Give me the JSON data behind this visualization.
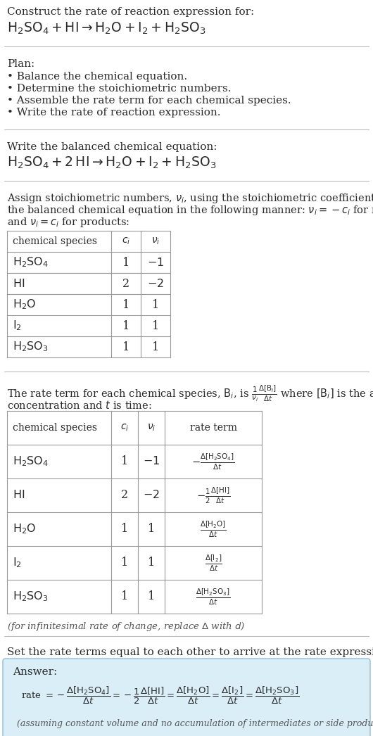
{
  "bg_color": "#ffffff",
  "text_color": "#2a2a2a",
  "gray_text": "#555555",
  "section_bg": "#f0f8ff",
  "table_border": "#999999",
  "answer_box_bg": "#daeef8",
  "answer_box_border": "#90bdd0",
  "line_color": "#bbbbbb",
  "title_intro": "Construct the rate of reaction expression for:",
  "title_eq": "$\\mathrm{H_2SO_4} + \\mathrm{HI}  \\rightarrow  \\mathrm{H_2O} + \\mathrm{I_2} + \\mathrm{H_2SO_3}$",
  "plan_header": "Plan:",
  "plan_items": [
    "• Balance the chemical equation.",
    "• Determine the stoichiometric numbers.",
    "• Assemble the rate term for each chemical species.",
    "• Write the rate of reaction expression."
  ],
  "bal_header": "Write the balanced chemical equation:",
  "bal_eq": "$\\mathrm{H_2SO_4} + 2\\,\\mathrm{HI}  \\rightarrow  \\mathrm{H_2O} + \\mathrm{I_2} + \\mathrm{H_2SO_3}$",
  "stoich_text_lines": [
    "Assign stoichiometric numbers, $\\nu_i$, using the stoichiometric coefficients, $c_i$, from",
    "the balanced chemical equation in the following manner: $\\nu_i = -c_i$ for reactants",
    "and $\\nu_i = c_i$ for products:"
  ],
  "t1_col_headers": [
    "chemical species",
    "$c_i$",
    "$\\nu_i$"
  ],
  "t1_rows": [
    [
      "$\\mathrm{H_2SO_4}$",
      "1",
      "$-1$"
    ],
    [
      "$\\mathrm{HI}$",
      "2",
      "$-2$"
    ],
    [
      "$\\mathrm{H_2O}$",
      "1",
      "1"
    ],
    [
      "$\\mathrm{I_2}$",
      "1",
      "1"
    ],
    [
      "$\\mathrm{H_2SO_3}$",
      "1",
      "1"
    ]
  ],
  "rate_text_line1": "The rate term for each chemical species, $\\mathrm{B}_i$, is $\\frac{1}{\\nu_i}\\frac{\\Delta[\\mathrm{B}_i]}{\\Delta t}$ where $[\\mathrm{B}_i]$ is the amount",
  "rate_text_line2": "concentration and $t$ is time:",
  "t2_col_headers": [
    "chemical species",
    "$c_i$",
    "$\\nu_i$",
    "rate term"
  ],
  "t2_rows": [
    [
      "$\\mathrm{H_2SO_4}$",
      "1",
      "$-1$",
      "$-\\frac{\\Delta[\\mathrm{H_2SO_4}]}{\\Delta t}$"
    ],
    [
      "$\\mathrm{HI}$",
      "2",
      "$-2$",
      "$-\\frac{1}{2}\\frac{\\Delta[\\mathrm{HI}]}{\\Delta t}$"
    ],
    [
      "$\\mathrm{H_2O}$",
      "1",
      "1",
      "$\\frac{\\Delta[\\mathrm{H_2O}]}{\\Delta t}$"
    ],
    [
      "$\\mathrm{I_2}$",
      "1",
      "1",
      "$\\frac{\\Delta[\\mathrm{I_2}]}{\\Delta t}$"
    ],
    [
      "$\\mathrm{H_2SO_3}$",
      "1",
      "1",
      "$\\frac{\\Delta[\\mathrm{H_2SO_3}]}{\\Delta t}$"
    ]
  ],
  "inf_note": "(for infinitesimal rate of change, replace $\\Delta$ with $d$)",
  "set_eq_text": "Set the rate terms equal to each other to arrive at the rate expression:",
  "answer_label": "Answer:",
  "answer_rate_eq": "rate $= -\\dfrac{\\Delta[\\mathrm{H_2SO_4}]}{\\Delta t} = -\\dfrac{1}{2}\\dfrac{\\Delta[\\mathrm{HI}]}{\\Delta t} = \\dfrac{\\Delta[\\mathrm{H_2O}]}{\\Delta t} = \\dfrac{\\Delta[\\mathrm{I_2}]}{\\Delta t} = \\dfrac{\\Delta[\\mathrm{H_2SO_3}]}{\\Delta t}$",
  "answer_note": "(assuming constant volume and no accumulation of intermediates or side products)"
}
